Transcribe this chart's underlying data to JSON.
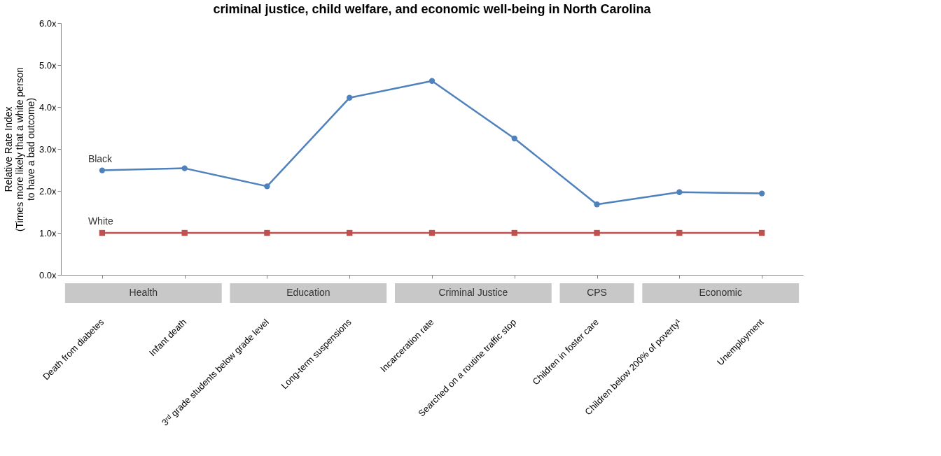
{
  "chart_data": {
    "type": "line",
    "title": "criminal justice, child welfare, and economic well-being in North Carolina",
    "ylabel": "Relative Rate Index\n(Times more likely that a white person\nto have a bad outcome)",
    "categories": [
      "Death from diabetes",
      "Infant death",
      "3ʳᵈ grade students below grade level",
      "Long-term suspensions",
      "Incarceration rate",
      "Searched on a routine traffic stop",
      "Children in foster care",
      "Children below 200% of poverty¹",
      "Unemployment"
    ],
    "series": [
      {
        "name": "Black",
        "color": "#4f81bd",
        "marker": "circle",
        "values": [
          2.49,
          2.54,
          2.11,
          4.22,
          4.62,
          3.25,
          1.68,
          1.97,
          1.94
        ]
      },
      {
        "name": "White",
        "color": "#c0504d",
        "marker": "square",
        "values": [
          1.0,
          1.0,
          1.0,
          1.0,
          1.0,
          1.0,
          1.0,
          1.0,
          1.0
        ]
      }
    ],
    "ylim": [
      0,
      6
    ],
    "yticks": [
      {
        "value": 0,
        "label": "0.0x"
      },
      {
        "value": 1,
        "label": "1.0x"
      },
      {
        "value": 2,
        "label": "2.0x"
      },
      {
        "value": 3,
        "label": "3.0x"
      },
      {
        "value": 4,
        "label": "4.0x"
      },
      {
        "value": 5,
        "label": "5.0x"
      },
      {
        "value": 6,
        "label": "6.0x"
      }
    ],
    "annotations": [
      "Health",
      "Education",
      "Criminal Justice",
      "CPS",
      "Economic"
    ],
    "grid": false,
    "line_style": "solid"
  }
}
